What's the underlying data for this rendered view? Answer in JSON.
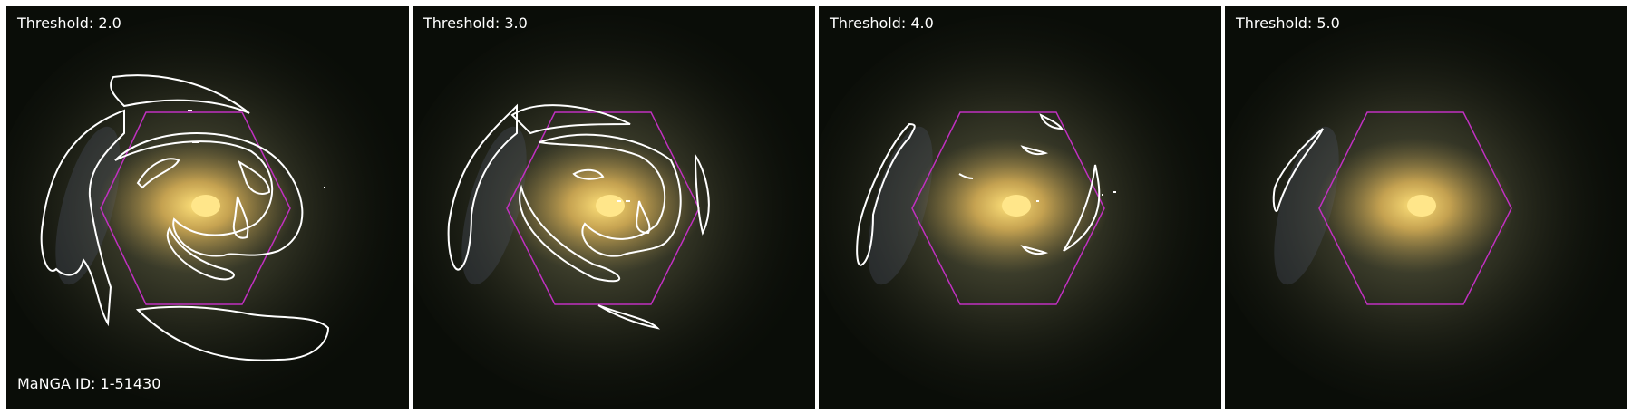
{
  "panels": [
    {
      "threshold_label": "Threshold: 2.0"
    },
    {
      "threshold_label": "Threshold: 3.0"
    },
    {
      "threshold_label": "Threshold: 4.0"
    },
    {
      "threshold_label": "Threshold: 5.0"
    }
  ],
  "manga_id_label": "MaNGA ID: 1-51430",
  "colors": {
    "contour": "#ffffff",
    "hexagon": "#c030c0",
    "background": "#0a0d08",
    "core": "#f7d46a"
  }
}
